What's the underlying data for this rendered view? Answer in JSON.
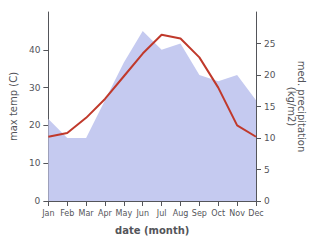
{
  "chart_data": {
    "type": "line",
    "categories": [
      "Jan",
      "Feb",
      "Mar",
      "Apr",
      "May",
      "Jun",
      "Jul",
      "Aug",
      "Sep",
      "Oct",
      "Nov",
      "Dec"
    ],
    "xlabel": "date (month)",
    "ylabel": "max temp (C)",
    "y2label": "med. precipitation\n(kg/m2)",
    "ylim": [
      0,
      50
    ],
    "yticks": [
      0,
      10,
      20,
      30,
      40
    ],
    "y2lim": [
      0,
      30
    ],
    "y2ticks": [
      0,
      5,
      10,
      15,
      20,
      25
    ],
    "grid": false,
    "series": [
      {
        "type": "area",
        "color": "#c5caf0",
        "axis": "y2",
        "values": [
          13,
          10,
          10,
          16,
          22,
          27,
          24,
          25,
          20,
          19,
          20,
          16
        ]
      },
      {
        "type": "line",
        "color": "#c0392b",
        "values": [
          17,
          18,
          22,
          27,
          33,
          39,
          44,
          43,
          38,
          30,
          20,
          17
        ]
      }
    ]
  }
}
